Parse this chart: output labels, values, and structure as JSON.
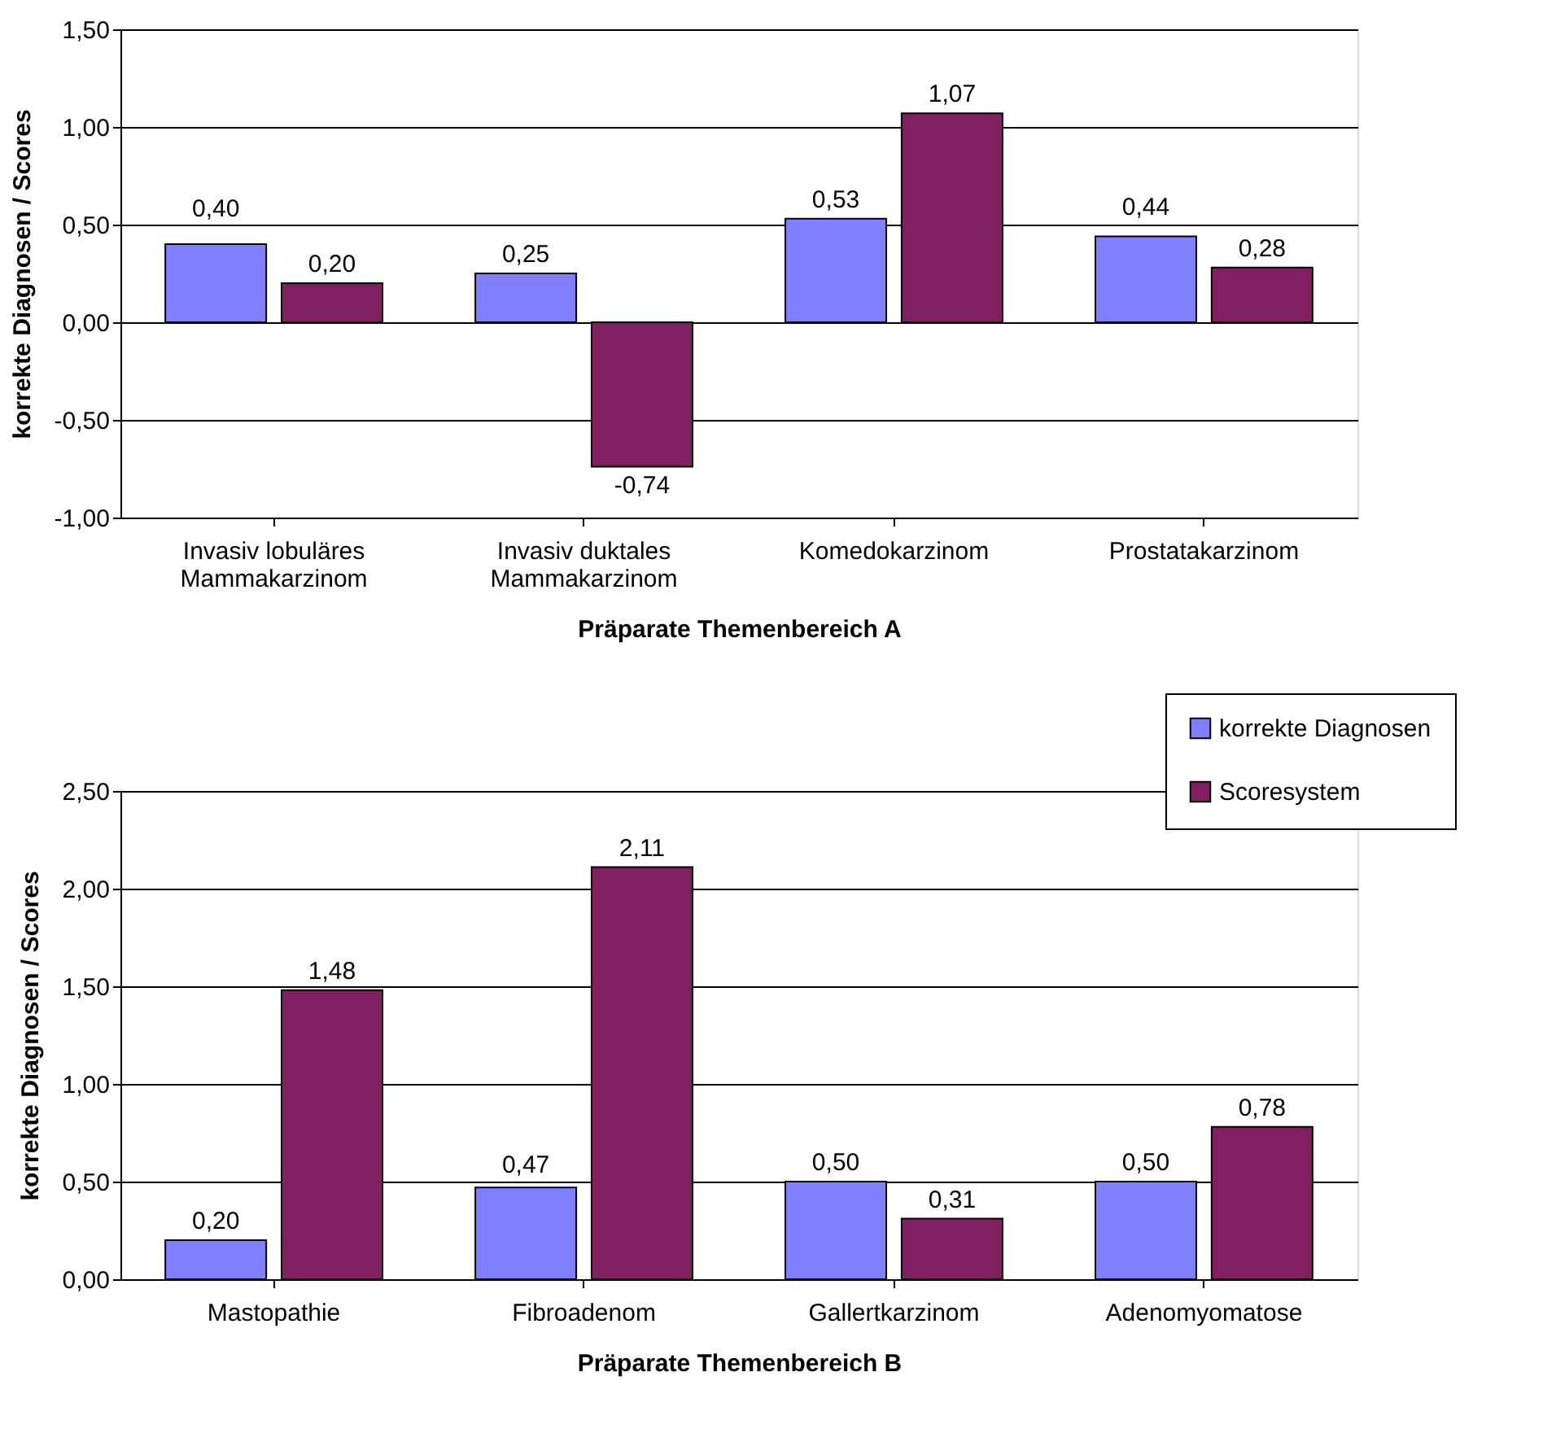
{
  "chart_data": [
    {
      "type": "bar",
      "categories": [
        "Invasiv lobuläres Mammakarzinom",
        "Invasiv duktales Mammakarzinom",
        "Komedokarzinom",
        "Prostatakarzinom"
      ],
      "series": [
        {
          "color": "#8080ff",
          "values": [
            0.4,
            0.25,
            0.53,
            0.44
          ],
          "value_labels": [
            "0,40",
            "0,25",
            "0,53",
            "0,44"
          ]
        },
        {
          "color": "#802060",
          "values": [
            0.2,
            -0.74,
            1.07,
            0.28
          ],
          "value_labels": [
            "0,20",
            "-0,74",
            "1,07",
            "0,28"
          ]
        }
      ],
      "xlabel": "Präparate Themenbereich A",
      "ylabel": "korrekte Diagnosen / Scores",
      "ylim": [
        -1.0,
        1.5
      ],
      "yticks": [
        {
          "value": -1.0,
          "label": "-1,00"
        },
        {
          "value": -0.5,
          "label": "-0,50"
        },
        {
          "value": 0.0,
          "label": "0,00"
        },
        {
          "value": 0.5,
          "label": "0,50"
        },
        {
          "value": 1.0,
          "label": "1,00"
        },
        {
          "value": 1.5,
          "label": "1,50"
        }
      ],
      "grid": "y"
    },
    {
      "type": "bar",
      "categories": [
        "Mastopathie",
        "Fibroadenom",
        "Gallertkarzinom",
        "Adenomyomatose"
      ],
      "series": [
        {
          "name": "korrekte Diagnosen",
          "color": "#8080ff",
          "values": [
            0.2,
            0.47,
            0.5,
            0.5
          ],
          "value_labels": [
            "0,20",
            "0,47",
            "0,50",
            "0,50"
          ]
        },
        {
          "name": "Scoresystem",
          "color": "#802060",
          "values": [
            1.48,
            2.11,
            0.31,
            0.78
          ],
          "value_labels": [
            "1,48",
            "2,11",
            "0,31",
            "0,78"
          ]
        }
      ],
      "xlabel": "Präparate Themenbereich B",
      "ylabel": "korrekte Diagnosen / Scores",
      "ylim": [
        0.0,
        2.5
      ],
      "yticks": [
        {
          "value": 0.0,
          "label": "0,00"
        },
        {
          "value": 0.5,
          "label": "0,50"
        },
        {
          "value": 1.0,
          "label": "1,00"
        },
        {
          "value": 1.5,
          "label": "1,50"
        },
        {
          "value": 2.0,
          "label": "2,00"
        },
        {
          "value": 2.5,
          "label": "2,50"
        }
      ],
      "grid": "y",
      "legend": "top right"
    }
  ]
}
